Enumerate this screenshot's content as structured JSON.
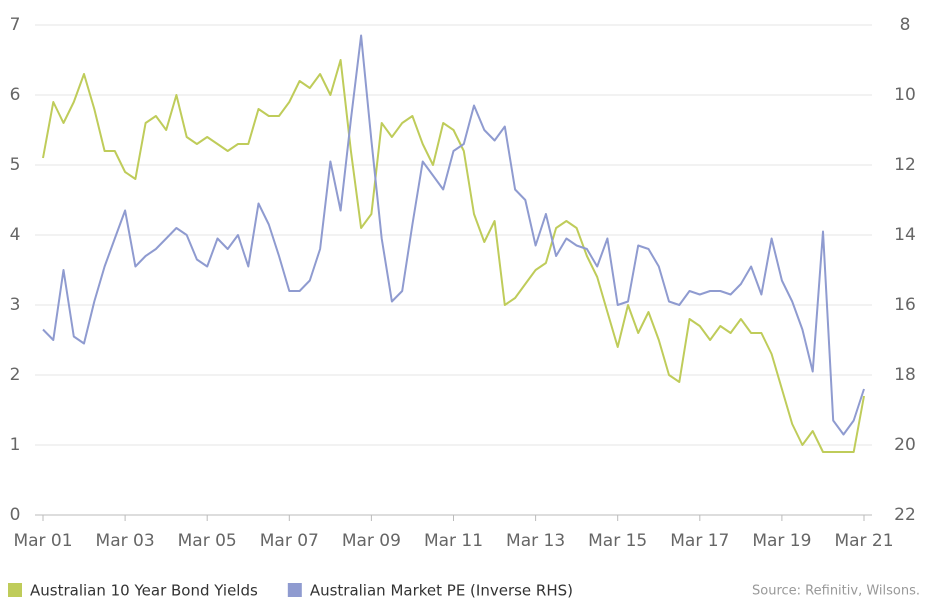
{
  "chart_data": {
    "type": "line",
    "categories": [
      "Mar 01",
      null,
      null,
      null,
      null,
      null,
      null,
      null,
      "Mar 03",
      null,
      null,
      null,
      null,
      null,
      null,
      null,
      "Mar 05",
      null,
      null,
      null,
      null,
      null,
      null,
      null,
      "Mar 07",
      null,
      null,
      null,
      null,
      null,
      null,
      null,
      "Mar 09",
      null,
      null,
      null,
      null,
      null,
      null,
      null,
      "Mar 11",
      null,
      null,
      null,
      null,
      null,
      null,
      null,
      "Mar 13",
      null,
      null,
      null,
      null,
      null,
      null,
      null,
      "Mar 15",
      null,
      null,
      null,
      null,
      null,
      null,
      null,
      "Mar 17",
      null,
      null,
      null,
      null,
      null,
      null,
      null,
      "Mar 19",
      null,
      null,
      null,
      null,
      null,
      null,
      null,
      "Mar 21"
    ],
    "series": [
      {
        "name": "Australian 10 Year Bond Yields",
        "color": "#bfcc5a",
        "values": [
          5.1,
          5.9,
          5.6,
          5.9,
          6.3,
          5.8,
          5.2,
          5.2,
          4.9,
          4.8,
          5.6,
          5.7,
          5.5,
          6.0,
          5.4,
          5.3,
          5.4,
          5.3,
          5.2,
          5.3,
          5.3,
          5.8,
          5.7,
          5.7,
          5.9,
          6.2,
          6.1,
          6.3,
          6.0,
          6.5,
          5.2,
          4.1,
          4.3,
          5.6,
          5.4,
          5.6,
          5.7,
          5.3,
          5.0,
          5.6,
          5.5,
          5.2,
          4.3,
          3.9,
          4.2,
          3.0,
          3.1,
          3.3,
          3.5,
          3.6,
          4.1,
          4.2,
          4.1,
          3.7,
          3.4,
          2.9,
          2.4,
          3.0,
          2.6,
          2.9,
          2.5,
          2.0,
          1.9,
          2.8,
          2.7,
          2.5,
          2.7,
          2.6,
          2.8,
          2.6,
          2.6,
          2.3,
          1.8,
          1.3,
          1.0,
          1.2,
          0.9,
          0.9,
          0.9,
          0.9,
          1.7
        ]
      },
      {
        "name": "Australian Market PE (Inverse RHS)",
        "color": "#8f9bd0",
        "axis": "y2",
        "values": [
          16.7,
          17.0,
          15.0,
          16.9,
          17.1,
          15.9,
          14.9,
          14.1,
          13.3,
          14.9,
          14.6,
          14.4,
          14.1,
          13.8,
          14.0,
          14.7,
          14.9,
          14.1,
          14.4,
          14.0,
          14.9,
          13.1,
          13.7,
          14.6,
          15.6,
          15.6,
          15.3,
          14.4,
          11.9,
          13.3,
          10.7,
          8.3,
          11.3,
          14.1,
          15.9,
          15.6,
          13.7,
          11.9,
          12.3,
          12.7,
          11.6,
          11.4,
          10.3,
          11.0,
          11.3,
          10.9,
          12.7,
          13.0,
          14.3,
          13.4,
          14.6,
          14.1,
          14.3,
          14.4,
          14.9,
          14.1,
          16.0,
          15.9,
          14.3,
          14.4,
          14.9,
          15.9,
          16.0,
          15.6,
          15.7,
          15.6,
          15.6,
          15.7,
          15.4,
          14.9,
          15.7,
          14.1,
          15.3,
          15.9,
          16.7,
          17.9,
          13.9,
          19.3,
          19.7,
          19.3,
          18.4
        ]
      }
    ],
    "ylim": [
      0,
      7
    ],
    "yticks": [
      0,
      1,
      2,
      3,
      4,
      5,
      6,
      7
    ],
    "y2lim": [
      22,
      8
    ],
    "y2ticks": [
      22,
      20,
      18,
      16,
      14,
      12,
      10,
      8
    ],
    "grid": true,
    "source": "Source: Refinitiv, Wilsons."
  }
}
